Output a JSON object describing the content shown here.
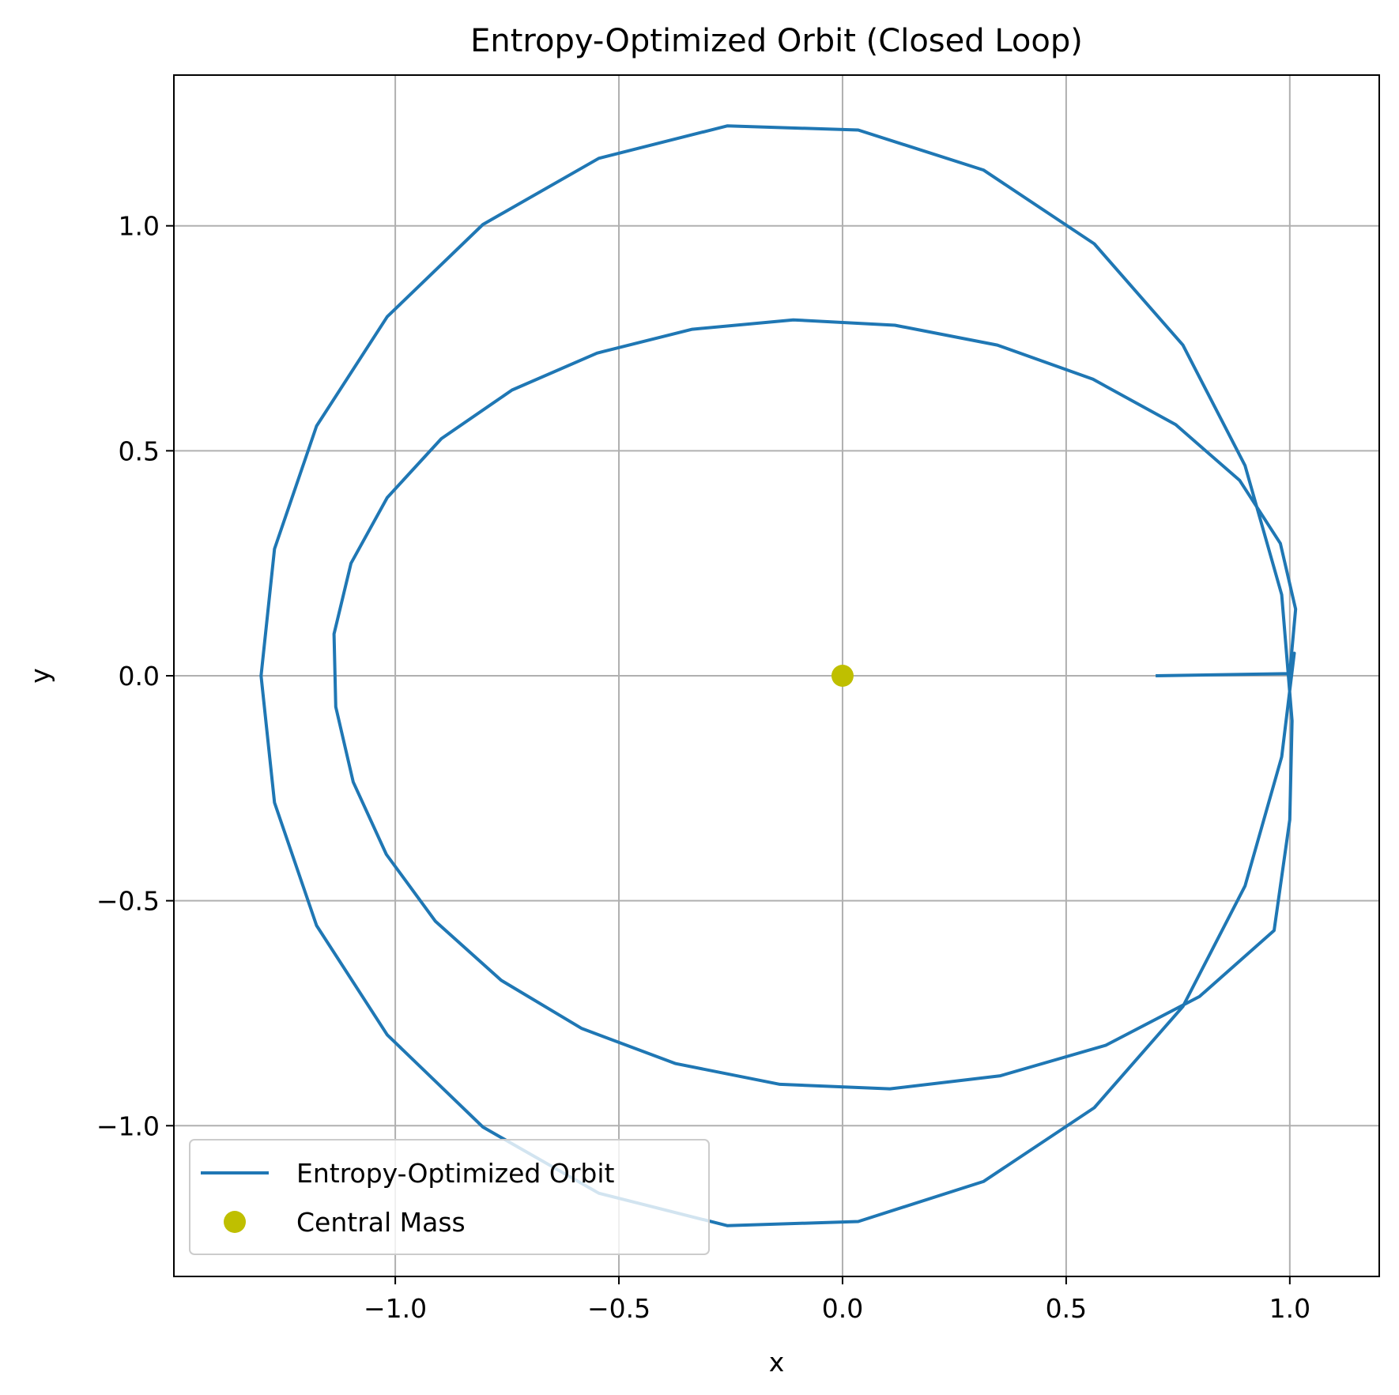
{
  "chart_data": {
    "type": "line",
    "title": "Entropy-Optimized Orbit (Closed Loop)",
    "xlabel": "x",
    "ylabel": "y",
    "xlim": [
      -1.495,
      1.2
    ],
    "ylim": [
      -1.335,
      1.335
    ],
    "aspect": "equal",
    "grid": true,
    "legend_position": "lower-left",
    "x_ticks": [
      -1.0,
      -0.5,
      0.0,
      0.5,
      1.0
    ],
    "x_tick_labels": [
      "−1.0",
      "−0.5",
      "0.0",
      "0.5",
      "1.0"
    ],
    "y_ticks": [
      -1.0,
      -0.5,
      0.0,
      0.5,
      1.0
    ],
    "y_tick_labels": [
      "−1.0",
      "−0.5",
      "0.0",
      "0.5",
      "1.0"
    ],
    "series": [
      {
        "name": "Entropy-Optimized Orbit",
        "kind": "line",
        "color": "#1f77b4",
        "x": [
          0.7,
          1.0,
          1.013,
          0.979,
          0.888,
          0.745,
          0.56,
          0.346,
          0.117,
          -0.11,
          -0.336,
          -0.549,
          -0.739,
          -0.897,
          -1.018,
          -1.099,
          -1.137,
          -1.133,
          -1.094,
          -1.02,
          -0.91,
          -0.763,
          -0.583,
          -0.373,
          -0.14,
          0.106,
          0.353,
          0.589,
          0.798,
          0.965,
          1.0,
          1.005,
          0.982,
          0.9,
          0.761,
          0.563,
          0.315,
          0.035,
          -0.258,
          -0.545,
          -0.804,
          -1.018,
          -1.176,
          -1.27,
          -1.3,
          -1.27,
          -1.176,
          -1.018,
          -0.804,
          -0.545,
          -0.258,
          0.035,
          0.315,
          0.563,
          0.761,
          0.9,
          0.982,
          1.01,
          1.0
        ],
        "y": [
          0.0,
          0.005,
          0.148,
          0.294,
          0.434,
          0.558,
          0.659,
          0.735,
          0.779,
          0.791,
          0.77,
          0.717,
          0.635,
          0.527,
          0.396,
          0.25,
          0.093,
          -0.069,
          -0.236,
          -0.397,
          -0.546,
          -0.677,
          -0.784,
          -0.862,
          -0.908,
          -0.918,
          -0.889,
          -0.821,
          -0.713,
          -0.566,
          -0.32,
          -0.1,
          0.18,
          0.467,
          0.735,
          0.96,
          1.124,
          1.213,
          1.222,
          1.15,
          1.003,
          0.798,
          0.555,
          0.282,
          0.0,
          -0.282,
          -0.555,
          -0.798,
          -1.003,
          -1.15,
          -1.222,
          -1.213,
          -1.124,
          -0.96,
          -0.735,
          -0.467,
          -0.18,
          0.05,
          0.0
        ]
      },
      {
        "name": "Central Mass",
        "kind": "marker",
        "color": "#bfbf00",
        "x": [
          0.0
        ],
        "y": [
          0.0
        ]
      }
    ]
  }
}
